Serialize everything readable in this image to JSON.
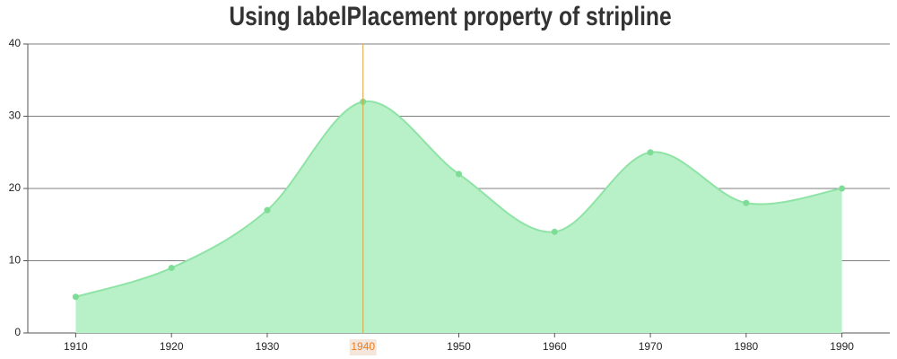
{
  "chart_data": {
    "type": "splineArea",
    "title": "Using labelPlacement property of stripline",
    "x": [
      1910,
      1920,
      1930,
      1940,
      1950,
      1960,
      1970,
      1980,
      1990
    ],
    "values": [
      5,
      9,
      17,
      32,
      22,
      14,
      25,
      18,
      20
    ],
    "color": "#8ee3a5",
    "fill_color": "#b8f0c8",
    "xlim": [
      1905,
      1995
    ],
    "xticks": [
      1910,
      1920,
      1930,
      1950,
      1960,
      1970,
      1980,
      1990
    ],
    "ylim": [
      0,
      40
    ],
    "yticks": [
      0,
      10,
      20,
      30,
      40
    ],
    "grid": true,
    "stripline": {
      "value": 1940,
      "label": "1940",
      "color": "#d9a53a",
      "label_color": "#f07a19"
    }
  }
}
